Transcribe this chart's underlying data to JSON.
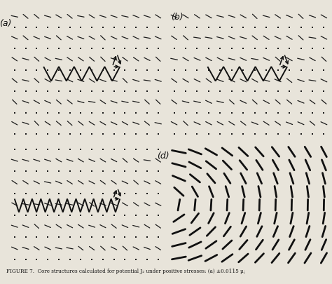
{
  "fig_width": 4.74,
  "fig_height": 4.05,
  "dpi": 100,
  "bg_color": "#e8e4da",
  "dot_color": "#1a1a1a",
  "tick_color": "#1a1a1a",
  "line_color": "#111111",
  "caption": "FIGURE 7.  Core structures calculated for potential J₂ under positive stresses: (a) ±0.0115 μ;"
}
